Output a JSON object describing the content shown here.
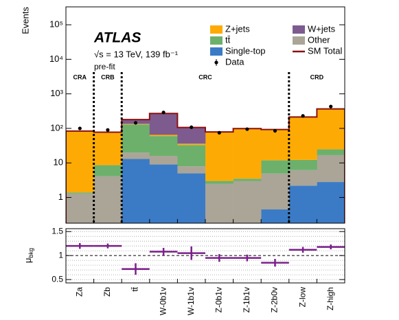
{
  "chart_data": [
    {
      "type": "stacked_bar",
      "log_y": true,
      "ylabel": "Events",
      "ylim": [
        0.18,
        330000
      ],
      "yticks": [
        1,
        10,
        {
          "value": 100,
          "label": "10²"
        },
        {
          "value": 1000,
          "label": "10³"
        },
        {
          "value": 10000,
          "label": "10⁴"
        },
        {
          "value": 100000,
          "label": "10⁵"
        }
      ],
      "annotations": [
        "ATLAS",
        "√s = 13 TeV, 139 fb⁻¹",
        "pre-fit"
      ],
      "regions": [
        {
          "label": "CRA",
          "start": 0,
          "end": 1
        },
        {
          "label": "CRB",
          "start": 1,
          "end": 2
        },
        {
          "label": "CRC",
          "start": 2,
          "end": 8
        },
        {
          "label": "CRD",
          "start": 8,
          "end": 10
        }
      ],
      "series": [
        {
          "name": "Single-top",
          "color": "#3b7bc6",
          "values": [
            0.1,
            0.1,
            13,
            9,
            5,
            0.1,
            0.1,
            0.45,
            2.2,
            2.8
          ]
        },
        {
          "name": "Other",
          "color": "#aaa597",
          "values": [
            1.2,
            4,
            7,
            7,
            3,
            2.4,
            2.9,
            4.5,
            4,
            14
          ]
        },
        {
          "name": "tt̄",
          "color": "#6cb06c",
          "values": [
            0.1,
            4.5,
            110,
            44,
            25,
            0.5,
            0.5,
            7,
            6,
            8
          ]
        },
        {
          "name": "Z+jets",
          "color": "#fdab04",
          "values": [
            80,
            68,
            5,
            5,
            3,
            75,
            94,
            80,
            200,
            340
          ]
        },
        {
          "name": "W+jets",
          "color": "#7d5b8e",
          "values": [
            2,
            1,
            45,
            205,
            70,
            1,
            1,
            0.5,
            1,
            2
          ]
        }
      ],
      "total": {
        "name": "SM Total",
        "color": "#8b1010"
      },
      "data": {
        "name": "Data",
        "color": "#000000",
        "values": [
          100,
          90,
          145,
          290,
          108,
          75,
          95,
          85,
          230,
          430
        ]
      }
    },
    {
      "type": "errorbar",
      "ylabel": {
        "symbol": "μ",
        "subscript": "bkg"
      },
      "categories": [
        "Za",
        "Zb",
        "tt̄",
        "W-0b1v",
        "W-1b1v",
        "Z-0b1v",
        "Z-1b1v",
        "Z-2b0v",
        "Z-low",
        "Z-high"
      ],
      "values": [
        1.2,
        1.2,
        0.72,
        1.08,
        1.05,
        0.95,
        0.95,
        0.85,
        1.12,
        1.18
      ],
      "errors": [
        0.06,
        0.05,
        0.12,
        0.08,
        0.14,
        0.08,
        0.07,
        0.08,
        0.06,
        0.05
      ],
      "color": "#7a1f8a",
      "ylim": [
        0.43,
        1.56
      ],
      "yticks": [
        0.5,
        1,
        1.5
      ],
      "grid_lines": [
        0.5,
        0.6,
        0.7,
        0.8,
        0.9,
        1.1,
        1.2,
        1.3,
        1.4,
        1.5
      ],
      "reference": 1
    }
  ]
}
